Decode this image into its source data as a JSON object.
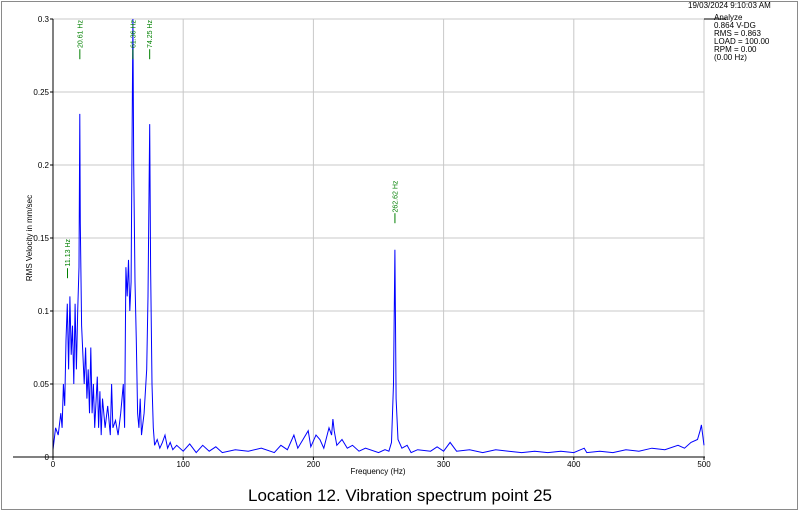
{
  "header": {
    "timestamp": "19/03/2024 9:10:03 AM",
    "info_lines": [
      "Analyze",
      "0.864 V-DG",
      "RMS = 0.863",
      "LOAD = 100.00",
      "RPM = 0.00",
      "(0.00 Hz)"
    ]
  },
  "caption": "Location 12. Vibration spectrum point 25",
  "colors": {
    "trace": "#0000ff",
    "annotation": "#008000",
    "grid": "#c8c8c8"
  },
  "chart_data": {
    "type": "line",
    "xlabel": "Frequency (Hz)",
    "ylabel": "RMS Velocity in mm/sec",
    "xlim": [
      0,
      500
    ],
    "ylim": [
      0,
      0.3
    ],
    "x_ticks": [
      0,
      100,
      200,
      300,
      400,
      500
    ],
    "y_ticks": [
      0,
      0.05,
      0.1,
      0.15,
      0.2,
      0.25,
      0.3
    ],
    "grid": true,
    "annotations": [
      {
        "x": 11.13,
        "label": "11.13 Hz",
        "y": 0.15
      },
      {
        "x": 20.61,
        "label": "20.61 Hz",
        "y": 0.3
      },
      {
        "x": 61.36,
        "label": "61.36 Hz",
        "y": 0.3
      },
      {
        "x": 74.25,
        "label": "74.25 Hz",
        "y": 0.3
      },
      {
        "x": 262.62,
        "label": "262.62 Hz",
        "y": 0.19
      }
    ],
    "series": [
      {
        "values": [
          [
            0,
            0.005
          ],
          [
            2,
            0.02
          ],
          [
            4,
            0.015
          ],
          [
            6,
            0.03
          ],
          [
            7,
            0.02
          ],
          [
            8,
            0.05
          ],
          [
            9,
            0.035
          ],
          [
            10,
            0.08
          ],
          [
            11,
            0.105
          ],
          [
            12,
            0.06
          ],
          [
            13,
            0.11
          ],
          [
            14,
            0.07
          ],
          [
            15,
            0.09
          ],
          [
            16,
            0.05
          ],
          [
            17,
            0.105
          ],
          [
            18,
            0.06
          ],
          [
            19,
            0.1
          ],
          [
            20,
            0.13
          ],
          [
            20.6,
            0.235
          ],
          [
            21,
            0.16
          ],
          [
            22,
            0.09
          ],
          [
            23,
            0.07
          ],
          [
            24,
            0.05
          ],
          [
            25,
            0.075
          ],
          [
            26,
            0.04
          ],
          [
            27,
            0.06
          ],
          [
            28,
            0.03
          ],
          [
            29,
            0.075
          ],
          [
            30,
            0.03
          ],
          [
            31,
            0.05
          ],
          [
            32,
            0.02
          ],
          [
            34,
            0.055
          ],
          [
            35,
            0.02
          ],
          [
            36,
            0.045
          ],
          [
            37,
            0.015
          ],
          [
            38,
            0.04
          ],
          [
            40,
            0.02
          ],
          [
            42,
            0.035
          ],
          [
            44,
            0.015
          ],
          [
            45,
            0.05
          ],
          [
            46,
            0.02
          ],
          [
            48,
            0.025
          ],
          [
            50,
            0.015
          ],
          [
            52,
            0.03
          ],
          [
            54,
            0.05
          ],
          [
            55,
            0.02
          ],
          [
            56,
            0.13
          ],
          [
            57,
            0.11
          ],
          [
            58,
            0.135
          ],
          [
            59,
            0.1
          ],
          [
            60,
            0.12
          ],
          [
            61.36,
            0.3
          ],
          [
            62,
            0.2
          ],
          [
            63,
            0.12
          ],
          [
            64,
            0.08
          ],
          [
            65,
            0.03
          ],
          [
            66,
            0.02
          ],
          [
            67,
            0.04
          ],
          [
            68,
            0.015
          ],
          [
            70,
            0.03
          ],
          [
            72,
            0.06
          ],
          [
            73,
            0.11
          ],
          [
            74.25,
            0.228
          ],
          [
            75,
            0.13
          ],
          [
            76,
            0.05
          ],
          [
            77,
            0.02
          ],
          [
            78,
            0.008
          ],
          [
            80,
            0.012
          ],
          [
            82,
            0.006
          ],
          [
            84,
            0.01
          ],
          [
            86,
            0.015
          ],
          [
            88,
            0.006
          ],
          [
            90,
            0.01
          ],
          [
            92,
            0.005
          ],
          [
            95,
            0.008
          ],
          [
            100,
            0.004
          ],
          [
            105,
            0.009
          ],
          [
            110,
            0.003
          ],
          [
            115,
            0.008
          ],
          [
            120,
            0.004
          ],
          [
            125,
            0.007
          ],
          [
            130,
            0.003
          ],
          [
            140,
            0.005
          ],
          [
            150,
            0.004
          ],
          [
            160,
            0.006
          ],
          [
            170,
            0.003
          ],
          [
            175,
            0.008
          ],
          [
            180,
            0.005
          ],
          [
            185,
            0.015
          ],
          [
            188,
            0.006
          ],
          [
            192,
            0.012
          ],
          [
            196,
            0.018
          ],
          [
            198,
            0.007
          ],
          [
            202,
            0.015
          ],
          [
            205,
            0.012
          ],
          [
            208,
            0.006
          ],
          [
            212,
            0.02
          ],
          [
            214,
            0.015
          ],
          [
            215,
            0.026
          ],
          [
            216,
            0.018
          ],
          [
            218,
            0.008
          ],
          [
            222,
            0.012
          ],
          [
            226,
            0.006
          ],
          [
            230,
            0.008
          ],
          [
            235,
            0.004
          ],
          [
            240,
            0.006
          ],
          [
            250,
            0.003
          ],
          [
            255,
            0.005
          ],
          [
            258,
            0.004
          ],
          [
            260,
            0.01
          ],
          [
            261.5,
            0.05
          ],
          [
            262.62,
            0.142
          ],
          [
            263.5,
            0.04
          ],
          [
            265,
            0.012
          ],
          [
            268,
            0.006
          ],
          [
            272,
            0.008
          ],
          [
            275,
            0.003
          ],
          [
            280,
            0.005
          ],
          [
            290,
            0.004
          ],
          [
            295,
            0.007
          ],
          [
            300,
            0.004
          ],
          [
            305,
            0.01
          ],
          [
            310,
            0.004
          ],
          [
            320,
            0.005
          ],
          [
            330,
            0.003
          ],
          [
            340,
            0.005
          ],
          [
            350,
            0.004
          ],
          [
            360,
            0.003
          ],
          [
            370,
            0.004
          ],
          [
            380,
            0.003
          ],
          [
            390,
            0.004
          ],
          [
            400,
            0.003
          ],
          [
            408,
            0.006
          ],
          [
            410,
            0.003
          ],
          [
            420,
            0.004
          ],
          [
            430,
            0.003
          ],
          [
            440,
            0.005
          ],
          [
            450,
            0.004
          ],
          [
            460,
            0.006
          ],
          [
            470,
            0.005
          ],
          [
            480,
            0.008
          ],
          [
            485,
            0.006
          ],
          [
            490,
            0.01
          ],
          [
            495,
            0.012
          ],
          [
            497,
            0.018
          ],
          [
            498,
            0.022
          ],
          [
            499,
            0.015
          ],
          [
            500,
            0.008
          ]
        ]
      }
    ]
  }
}
